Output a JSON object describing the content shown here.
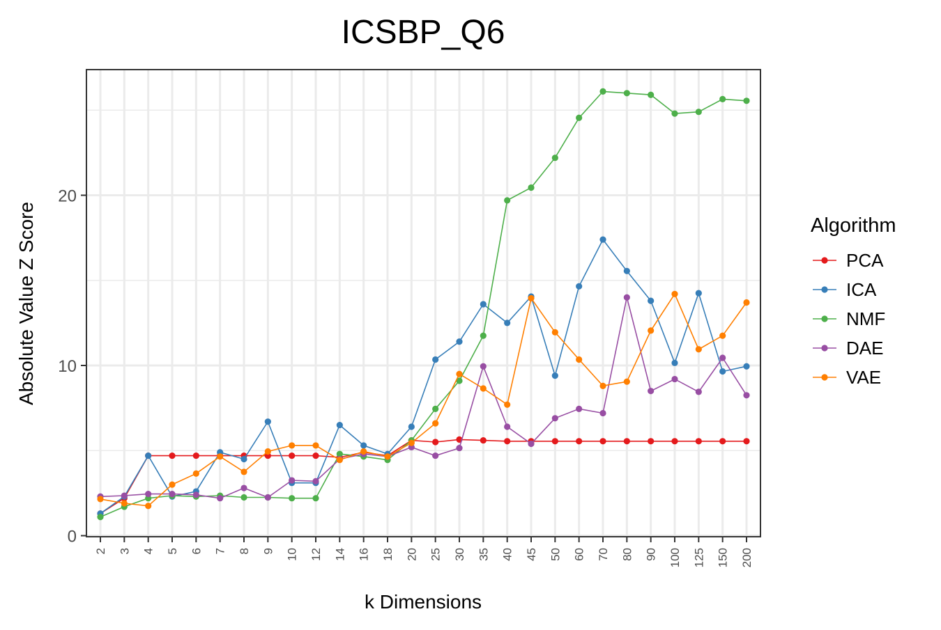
{
  "chart_data": {
    "type": "line",
    "title": "ICSBP_Q6",
    "xlabel": "k Dimensions",
    "ylabel": "Absolute Value Z Score",
    "categories": [
      "2",
      "3",
      "4",
      "5",
      "6",
      "7",
      "8",
      "9",
      "10",
      "12",
      "14",
      "16",
      "18",
      "20",
      "25",
      "30",
      "35",
      "40",
      "45",
      "50",
      "60",
      "70",
      "80",
      "90",
      "100",
      "125",
      "150",
      "200"
    ],
    "y_ticks": [
      0,
      10,
      20
    ],
    "ylim": [
      0,
      27.5
    ],
    "grid": true,
    "legend_title": "Algorithm",
    "legend_position": "right",
    "series": [
      {
        "name": "PCA",
        "color": "#E41A1C",
        "values": [
          1.3,
          2.2,
          4.7,
          4.7,
          4.7,
          4.7,
          4.7,
          4.7,
          4.7,
          4.7,
          4.6,
          4.9,
          4.7,
          5.6,
          5.5,
          5.65,
          5.6,
          5.55,
          5.55,
          5.55,
          5.55,
          5.55,
          5.55,
          5.55,
          5.55,
          5.55,
          5.55,
          5.55
        ]
      },
      {
        "name": "ICA",
        "color": "#377EB8",
        "values": [
          1.3,
          2.3,
          4.7,
          2.3,
          2.6,
          4.9,
          4.5,
          6.7,
          3.1,
          3.1,
          6.5,
          5.3,
          4.8,
          6.4,
          10.35,
          11.4,
          13.6,
          12.5,
          14.05,
          9.4,
          14.65,
          17.4,
          15.55,
          13.8,
          10.15,
          14.25,
          9.65,
          9.95
        ]
      },
      {
        "name": "NMF",
        "color": "#4DAF4A",
        "values": [
          1.1,
          1.7,
          2.2,
          2.35,
          2.3,
          2.35,
          2.25,
          2.25,
          2.2,
          2.2,
          4.8,
          4.65,
          4.45,
          5.6,
          7.45,
          9.1,
          11.75,
          19.7,
          20.45,
          22.2,
          24.55,
          26.1,
          26.0,
          25.9,
          24.8,
          24.9,
          25.65,
          25.55
        ]
      },
      {
        "name": "DAE",
        "color": "#984EA3",
        "values": [
          2.3,
          2.35,
          2.45,
          2.45,
          2.4,
          2.2,
          2.8,
          2.25,
          3.25,
          3.2,
          4.5,
          4.8,
          4.65,
          5.2,
          4.7,
          5.15,
          9.95,
          6.4,
          5.4,
          6.9,
          7.45,
          7.2,
          14.0,
          8.5,
          9.2,
          8.45,
          10.45,
          8.25
        ]
      },
      {
        "name": "VAE",
        "color": "#FF7F00",
        "values": [
          2.15,
          1.9,
          1.75,
          3.0,
          3.65,
          4.65,
          3.75,
          4.95,
          5.3,
          5.3,
          4.45,
          4.95,
          4.65,
          5.45,
          6.6,
          9.5,
          8.65,
          7.7,
          13.95,
          11.95,
          10.35,
          8.8,
          9.05,
          12.05,
          14.2,
          10.95,
          11.75,
          13.7
        ]
      }
    ]
  }
}
